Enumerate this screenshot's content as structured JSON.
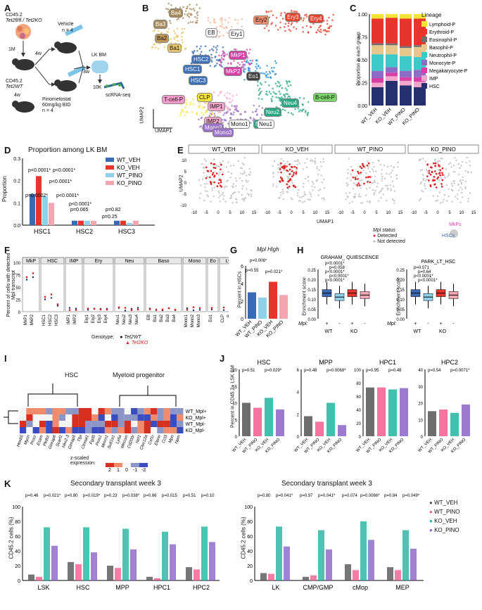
{
  "panels": {
    "A": {
      "label": "A",
      "donor": "CD45.2",
      "donor_genotype": "Tet2fl/fl / Tet2KO",
      "dose": "1M",
      "wait1": "4w",
      "vehicle": "Vehicle",
      "n_vehicle": "n = 4",
      "host": "CD45.2",
      "host_genotype": "Tet2WT",
      "wait2": "4w",
      "treat": "Pinometostat",
      "treat_dose": "60mg/kg BID",
      "n_treat": "n = 4",
      "wait3": "3w",
      "lkbm": "LK BM",
      "cells": "10K",
      "seq": "scRNA-seq"
    },
    "B": {
      "label": "B",
      "xlabel": "UMAP1",
      "ylabel": "UMAP2",
      "clusters": [
        {
          "name": "Ba4",
          "color": "#a88b5c"
        },
        {
          "name": "Ba3",
          "color": "#a88b5c"
        },
        {
          "name": "Ba2",
          "color": "#c3995a"
        },
        {
          "name": "Ba1",
          "color": "#e8c56a"
        },
        {
          "name": "EB",
          "color": "#ffffff"
        },
        {
          "name": "Ery1",
          "color": "#ffffff"
        },
        {
          "name": "Ery2",
          "color": "#f58c6c"
        },
        {
          "name": "Ery3",
          "color": "#e4432d"
        },
        {
          "name": "Ery4",
          "color": "#e4432d"
        },
        {
          "name": "HSC2",
          "color": "#3d6fb6"
        },
        {
          "name": "MkP1",
          "color": "#d63fa6"
        },
        {
          "name": "MkP2",
          "color": "#d63fa6"
        },
        {
          "name": "HSC1",
          "color": "#3d6fb6"
        },
        {
          "name": "HSC3",
          "color": "#3d6fb6"
        },
        {
          "name": "Eo1",
          "color": "#404040"
        },
        {
          "name": "T-cell-P",
          "color": "#f39ccb"
        },
        {
          "name": "CLP",
          "color": "#f7e43a"
        },
        {
          "name": "IMP1",
          "color": "#f7a8cd"
        },
        {
          "name": "IMP2",
          "color": "#f7a8cd"
        },
        {
          "name": "Neu3",
          "color": "#27a884"
        },
        {
          "name": "Neu4",
          "color": "#27a884"
        },
        {
          "name": "Neu2",
          "color": "#27a884"
        },
        {
          "name": "Neu1",
          "color": "#ffffff"
        },
        {
          "name": "Mono1",
          "color": "#ffffff"
        },
        {
          "name": "Mono2",
          "color": "#9b72c8"
        },
        {
          "name": "Mono3",
          "color": "#9b72c8"
        },
        {
          "name": "B-cell-P",
          "color": "#7bd46a"
        }
      ]
    },
    "C": {
      "label": "C",
      "ylabel": "Proportion in each group",
      "legend_title": "Lineage",
      "chart_data": {
        "type": "bar",
        "stacked": true,
        "categories": [
          "WT_VEH",
          "KO_VEH",
          "WT_PINO",
          "KO_PINO"
        ],
        "series": [
          {
            "name": "HSC",
            "color": "#27306e",
            "values": [
              0.2,
              0.27,
              0.22,
              0.2
            ]
          },
          {
            "name": "IMP",
            "color": "#f3a6cd",
            "values": [
              0.05,
              0.05,
              0.05,
              0.06
            ]
          },
          {
            "name": "Megakaryocyte-P",
            "color": "#d63fa6",
            "values": [
              0.05,
              0.04,
              0.04,
              0.05
            ]
          },
          {
            "name": "Monocyte-P",
            "color": "#8c6cc4",
            "values": [
              0.08,
              0.06,
              0.07,
              0.08
            ]
          },
          {
            "name": "Neutrophil-P",
            "color": "#3cc9c9",
            "values": [
              0.18,
              0.14,
              0.16,
              0.14
            ]
          },
          {
            "name": "Basophil-P",
            "color": "#e8c78c",
            "values": [
              0.1,
              0.1,
              0.09,
              0.11
            ]
          },
          {
            "name": "Eosinophil-P",
            "color": "#707070",
            "values": [
              0.02,
              0.02,
              0.02,
              0.02
            ]
          },
          {
            "name": "Erythroid-P",
            "color": "#e8352c",
            "values": [
              0.27,
              0.28,
              0.3,
              0.29
            ]
          },
          {
            "name": "Lymphoid-P",
            "color": "#f3e43a",
            "values": [
              0.05,
              0.04,
              0.05,
              0.05
            ]
          }
        ],
        "ylim": [
          0,
          1
        ],
        "yticks": [
          "0.00",
          "0.25",
          "0.50",
          "0.75",
          "1.00"
        ]
      }
    },
    "D": {
      "label": "D",
      "title": "Proportion among LK BM",
      "ylabel": "Proportion",
      "chart_data": {
        "type": "bar",
        "categories": [
          "HSC1",
          "HSC2",
          "HSC3"
        ],
        "series": [
          {
            "name": "WT_VEH",
            "color": "#3b6ab5",
            "values": [
              0.14,
              0.02,
              0.02
            ]
          },
          {
            "name": "KO_VEH",
            "color": "#e8352c",
            "values": [
              0.22,
              0.02,
              0.02
            ]
          },
          {
            "name": "WT_PINO",
            "color": "#8fd0ea",
            "values": [
              0.13,
              0.02,
              0.01
            ]
          },
          {
            "name": "KO_PINO",
            "color": "#f4a6b0",
            "values": [
              0.1,
              0.02,
              0.02
            ]
          }
        ],
        "ylim": [
          0,
          0.3
        ],
        "yticks": [
          "0.0",
          "0.1",
          "0.2",
          "0.3"
        ]
      },
      "pvals": [
        "p<0.0001*",
        "p<0.0001*",
        "p<0.0001*",
        "p=0.0002*",
        "p<0.0001*",
        "p<0.0001*",
        "p=0.065",
        "p=0.82",
        "p=0.25"
      ]
    },
    "E": {
      "label": "E",
      "facets": [
        "WT_VEH",
        "KO_VEH",
        "WT_PINO",
        "KO_PINO"
      ],
      "xlabel": "UMAP1",
      "ylabel": "UMAP2",
      "xticks": [
        "-10",
        "-5",
        "0",
        "5",
        "10",
        "15"
      ],
      "yticks": [
        "10",
        "5",
        "0",
        "-5",
        "-10"
      ],
      "legend_title": "Mpl status",
      "legend_items": [
        "Detected",
        "Not detected"
      ],
      "inset_labels": [
        "MkPs",
        "HSCs"
      ]
    },
    "F": {
      "label": "F",
      "ylabel": "Percent of cells with detected Mpl transcript",
      "facets": [
        "MkP",
        "HSC",
        "IMP",
        "Ery",
        "Neu",
        "Baso",
        "Mono",
        "Eo",
        "Ly"
      ],
      "xticks": [
        "MkP1",
        "MkP2",
        "HSC1",
        "HSC2",
        "HSC3",
        "IMP1",
        "IMP2",
        "Ery1",
        "Ery2",
        "Ery3",
        "Ery4",
        "Neu1",
        "Neu2",
        "Neu3",
        "Neu4",
        "EB",
        "Ba1",
        "Ba2",
        "Ba3",
        "Ba4",
        "Mono1",
        "Mono2",
        "Mono3",
        "Eo1",
        "CLP",
        "B",
        "T"
      ],
      "yticks": [
        "0",
        "25",
        "50",
        "75",
        "100"
      ],
      "genotype_label": "Genotype:",
      "genotypes": [
        "Tet2WT",
        "Tet2KO"
      ]
    },
    "G": {
      "label": "G",
      "title": "Mpl High",
      "ylabel": "Percent in HSCs",
      "chart_data": {
        "type": "bar",
        "categories": [
          "WT_VEH",
          "WT_PINO",
          "KO_VEH",
          "KO_PINO"
        ],
        "values": [
          3.0,
          2.4,
          4.2,
          2.7
        ],
        "ylim": [
          0,
          6
        ],
        "yticks": [
          "0",
          "2",
          "4",
          "6"
        ]
      },
      "pvals": [
        "p=0.006*",
        "p=0.55",
        "p=0.021*"
      ]
    },
    "H": {
      "label": "H",
      "plots": [
        {
          "title": "GRAHAM_ QUIESCENCE",
          "pvals": [
            "p<0.0001*",
            "p=0.058",
            "p<0.0001*",
            "p<0.0001*",
            "p<0.0001*"
          ]
        },
        {
          "title": "PARK_LT_HSC",
          "pvals": [
            "p=0.071",
            "p=0.64",
            "p<0.0001*",
            "p<0.0001*"
          ]
        }
      ],
      "ylabel": "Enrichment score",
      "yticks": [
        "0.25",
        "0.20",
        "0.15",
        "0.10",
        "0.05",
        "0.00"
      ],
      "mpl_label": "Mpl:",
      "signs": [
        "+",
        "-",
        "+",
        "-"
      ],
      "groups": [
        "WT",
        "KO"
      ]
    },
    "I": {
      "label": "I",
      "col_titles": [
        "HSC",
        "Myeloid progenitor"
      ],
      "rows": [
        "WT_Mpl+",
        "KO_Mpl+",
        "WT_Mpl-",
        "KO_Mpl-"
      ],
      "genes": [
        "Hoxb5",
        "Mycn",
        "Procr",
        "Esam",
        "Pkdcc",
        "Gimap6",
        "Scarf1",
        "Nkx2-3",
        "Gimap5",
        "Tfpi",
        "Ctnnal1",
        "Fgd5",
        "Pros1",
        "Mmrn1",
        "Sult1a1",
        "Ly6a",
        "Mecom",
        "Cd200r",
        "Ncf1",
        "Clec12a",
        "Csf1r",
        "Elane",
        "Ccl3",
        "Mpo",
        "Npm"
      ],
      "scale_label": "z-scaled expression:",
      "scale_ticks": [
        "2",
        "1",
        "0",
        "-1",
        "-2"
      ]
    },
    "J": {
      "label": "J",
      "ylabel": "Percent in CD45.2+ LSK BM",
      "groups": [
        "WT_VEH",
        "WT_PINO",
        "KO_VEH",
        "KO_PINO"
      ],
      "chart_data": [
        {
          "type": "bar",
          "title": "HSC",
          "values": [
            10,
            8.5,
            11.5,
            8
          ],
          "ylim": [
            0,
            20
          ],
          "yticks": [
            "0",
            "5",
            "10",
            "15",
            "20"
          ],
          "pvals": [
            "p=0.51",
            "p=0.029*"
          ]
        },
        {
          "type": "bar",
          "title": "MPP",
          "values": [
            1.8,
            1.3,
            3.0,
            1.0
          ],
          "ylim": [
            0,
            6
          ],
          "yticks": [
            "0",
            "2",
            "4",
            "6"
          ],
          "pvals": [
            "p=0.48",
            "p=0.0068*"
          ]
        },
        {
          "type": "bar",
          "title": "HPC1",
          "values": [
            73,
            73,
            70,
            72
          ],
          "ylim": [
            0,
            100
          ],
          "yticks": [
            "0",
            "20",
            "40",
            "60",
            "80",
            "100"
          ],
          "pvals": [
            "p=0.95",
            "p=0.48"
          ]
        },
        {
          "type": "bar",
          "title": "HPC2",
          "values": [
            15,
            16,
            14,
            19
          ],
          "ylim": [
            0,
            40
          ],
          "yticks": [
            "0",
            "10",
            "20",
            "30",
            "40"
          ],
          "pvals": [
            "p=0.54",
            "p=0.0071*"
          ]
        }
      ]
    },
    "K": {
      "label": "K",
      "title": "Secondary transplant week 3",
      "ylabel": "CD45.2 cells (%)",
      "legend": [
        {
          "name": "WT_VEH",
          "color": "#555555"
        },
        {
          "name": "WT_PINO",
          "color": "#f25c8c"
        },
        {
          "name": "KO_VEH",
          "color": "#21b5a0"
        },
        {
          "name": "KO_PINO",
          "color": "#8b63c4"
        }
      ],
      "chart_data": [
        {
          "type": "bar",
          "categories": [
            "LSK",
            "HSC",
            "MPP",
            "HPC1",
            "HPC2"
          ],
          "ylim": [
            0,
            100
          ],
          "yticks": [
            "0",
            "20",
            "40",
            "60",
            "80",
            "100"
          ],
          "series": [
            {
              "name": "WT_VEH",
              "values": [
                8,
                25,
                20,
                5,
                18
              ]
            },
            {
              "name": "WT_PINO",
              "values": [
                5,
                22,
                17,
                3,
                15
              ]
            },
            {
              "name": "KO_VEH",
              "values": [
                72,
                72,
                70,
                66,
                73
              ]
            },
            {
              "name": "KO_PINO",
              "values": [
                47,
                38,
                42,
                49,
                52
              ]
            }
          ],
          "pvals": [
            "p=0.46",
            "p=0.021*",
            "p=0.80",
            "p=0.019*",
            "p=0.23",
            "p=0.038*",
            "p=0.66",
            "p=0.015",
            "p=0.51",
            "p=0.10"
          ]
        },
        {
          "type": "bar",
          "categories": [
            "LK",
            "CMP/GMP",
            "cMop",
            "MEP"
          ],
          "ylim": [
            0,
            100
          ],
          "yticks": [
            "0",
            "20",
            "40",
            "60",
            "80",
            "100"
          ],
          "series": [
            {
              "name": "WT_VEH",
              "values": [
                10,
                5,
                22,
                18
              ]
            },
            {
              "name": "WT_PINO",
              "values": [
                9,
                7,
                14,
                14
              ]
            },
            {
              "name": "KO_VEH",
              "values": [
                73,
                68,
                80,
                68
              ]
            },
            {
              "name": "KO_PINO",
              "values": [
                46,
                42,
                55,
                43
              ]
            }
          ],
          "pvals": [
            "p=0.80",
            "p=0.041*",
            "p=0.97",
            "p=0.041*",
            "p=0.074",
            "p=0.0066*",
            "p=0.84",
            "p=0.049*"
          ]
        }
      ]
    }
  }
}
